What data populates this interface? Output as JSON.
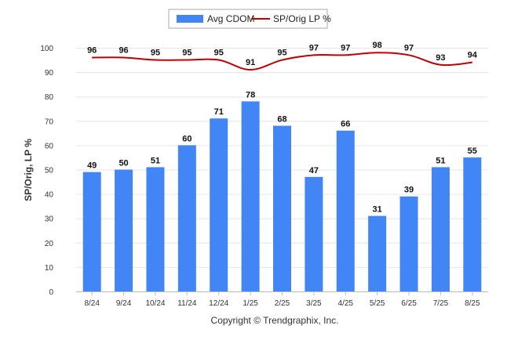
{
  "chart_data": {
    "type": "bar+line",
    "categories": [
      "8/24",
      "9/24",
      "10/24",
      "11/24",
      "12/24",
      "1/25",
      "2/25",
      "3/25",
      "4/25",
      "5/25",
      "6/25",
      "7/25",
      "8/25"
    ],
    "series": [
      {
        "name": "Avg CDOM",
        "type": "bar",
        "color": "#4285f4",
        "values": [
          49,
          50,
          51,
          60,
          71,
          78,
          68,
          47,
          66,
          31,
          39,
          51,
          55
        ]
      },
      {
        "name": "SP/Orig LP %",
        "type": "line",
        "color": "#c00000",
        "values": [
          96,
          96,
          95,
          95,
          95,
          91,
          95,
          97,
          97,
          98,
          97,
          93,
          94
        ]
      }
    ],
    "ylabel": "SP/Orig, LP %",
    "ylim": [
      0,
      100
    ],
    "yticks": [
      0,
      10,
      20,
      30,
      40,
      50,
      60,
      70,
      80,
      90,
      100
    ],
    "grid": true,
    "legend_position": "top-center",
    "footer": "Copyright © Trendgraphix, Inc."
  }
}
